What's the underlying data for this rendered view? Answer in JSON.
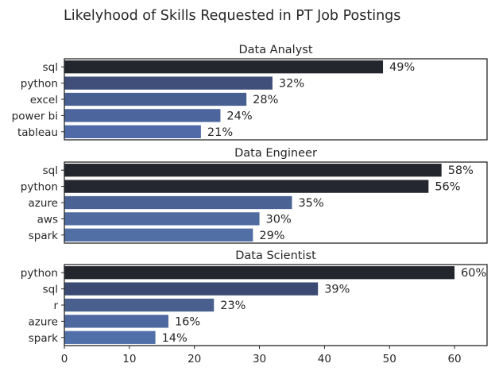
{
  "chart_data": {
    "title": "Likelyhood of Skills Requested in PT Job Postings",
    "type": "bar",
    "orientation": "horizontal",
    "xlim": [
      0,
      65
    ],
    "xticks": [
      0,
      10,
      20,
      30,
      40,
      50,
      60
    ],
    "value_suffix": "%",
    "grid": false,
    "panels": [
      {
        "title": "Data Analyst",
        "categories": [
          "sql",
          "python",
          "excel",
          "power bi",
          "tableau"
        ],
        "values": [
          49,
          32,
          28,
          24,
          21
        ],
        "colors": [
          "#23262d",
          "#3f4f79",
          "#485f91",
          "#4c659d",
          "#4f6aa6"
        ]
      },
      {
        "title": "Data Engineer",
        "categories": [
          "sql",
          "python",
          "azure",
          "aws",
          "spark"
        ],
        "values": [
          58,
          56,
          35,
          30,
          29
        ],
        "colors": [
          "#23262d",
          "#24272f",
          "#4a6394",
          "#4f6b9f",
          "#516ea5"
        ]
      },
      {
        "title": "Data Scientist",
        "categories": [
          "python",
          "sql",
          "r",
          "azure",
          "spark"
        ],
        "values": [
          60,
          39,
          23,
          16,
          14
        ],
        "colors": [
          "#23262d",
          "#3b4a72",
          "#49608f",
          "#4e699f",
          "#5170aa"
        ]
      }
    ]
  }
}
